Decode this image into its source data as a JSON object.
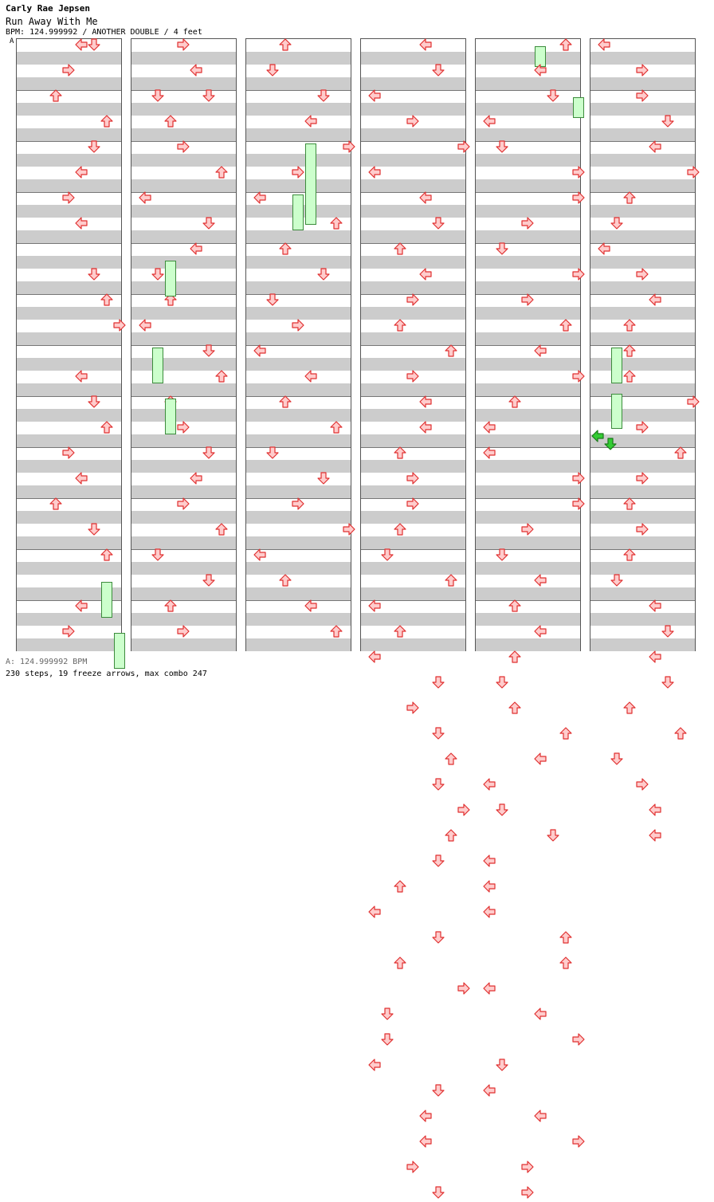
{
  "header": {
    "artist": "Carly Rae Jepsen",
    "title": "Run Away With Me",
    "info": "BPM: 124.999992 / ANOTHER DOUBLE / 4 feet",
    "bpm_marker": "A"
  },
  "footer": {
    "bpm": "A: 124.999992 BPM",
    "stats": "230 steps, 19 freeze arrows, max combo 247"
  },
  "colors": {
    "note_fill": "#ffcccc",
    "note_stroke": "#e03030",
    "freeze_fill": "#ccffcc",
    "freeze_stroke": "#3c8c3c",
    "active_freeze": "#33cc33",
    "stripe": "#cccccc"
  },
  "chart": {
    "columns": 6,
    "measures_per_column": 12,
    "lanes": [
      "left",
      "down",
      "up",
      "right",
      "left",
      "down",
      "up",
      "right"
    ],
    "notes": [
      [
        [
          4,
          0,
          "note"
        ],
        [
          5,
          0,
          "note"
        ],
        [
          3,
          0.5,
          "note"
        ],
        [
          2,
          1,
          "note"
        ],
        [
          6,
          1.5,
          "note"
        ],
        [
          5,
          2,
          "note"
        ],
        [
          4,
          2.5,
          "note"
        ],
        [
          3,
          3,
          "note"
        ],
        [
          4,
          3.5,
          "note"
        ],
        [
          5,
          4.5,
          "note"
        ],
        [
          6,
          5,
          "note"
        ],
        [
          7,
          5.5,
          "note"
        ],
        [
          4,
          6.5,
          "note"
        ],
        [
          5,
          7,
          "note"
        ],
        [
          6,
          7.5,
          "note"
        ],
        [
          3,
          8,
          "note"
        ],
        [
          4,
          8.5,
          "note"
        ],
        [
          2,
          9,
          "note"
        ],
        [
          5,
          9.5,
          "note"
        ],
        [
          6,
          10,
          "note"
        ],
        [
          4,
          11,
          "note"
        ],
        [
          3,
          11.5,
          "note"
        ]
      ],
      [
        [
          3,
          0,
          "note"
        ],
        [
          4,
          0.5,
          "note"
        ],
        [
          1,
          1,
          "note"
        ],
        [
          5,
          1,
          "note"
        ],
        [
          2,
          1.5,
          "note"
        ],
        [
          3,
          2,
          "note"
        ],
        [
          6,
          2.5,
          "note"
        ],
        [
          0,
          3,
          "note"
        ],
        [
          5,
          3.5,
          "note"
        ],
        [
          4,
          4,
          "note"
        ],
        [
          1,
          4.5,
          "note"
        ],
        [
          2,
          5,
          "note"
        ],
        [
          0,
          5.5,
          "note"
        ],
        [
          5,
          6,
          "note"
        ],
        [
          6,
          6.5,
          "note"
        ],
        [
          2,
          7,
          "note"
        ],
        [
          3,
          7.5,
          "note"
        ],
        [
          5,
          8,
          "note"
        ],
        [
          4,
          8.5,
          "note"
        ],
        [
          3,
          9,
          "note"
        ],
        [
          6,
          9.5,
          "note"
        ],
        [
          1,
          10,
          "note"
        ],
        [
          5,
          10.5,
          "note"
        ],
        [
          2,
          11,
          "note"
        ],
        [
          3,
          11.5,
          "note"
        ]
      ],
      [
        [
          2,
          0,
          "note"
        ],
        [
          1,
          0.5,
          "note"
        ],
        [
          5,
          1,
          "note"
        ],
        [
          4,
          1.5,
          "note"
        ],
        [
          7,
          2,
          "note"
        ],
        [
          3,
          2.5,
          "note"
        ],
        [
          0,
          3,
          "note"
        ],
        [
          6,
          3.5,
          "note"
        ],
        [
          2,
          4,
          "note"
        ],
        [
          5,
          4.5,
          "note"
        ],
        [
          1,
          5,
          "note"
        ],
        [
          3,
          5.5,
          "note"
        ],
        [
          0,
          6,
          "note"
        ],
        [
          4,
          6.5,
          "note"
        ],
        [
          2,
          7,
          "note"
        ],
        [
          6,
          7.5,
          "note"
        ],
        [
          1,
          8,
          "note"
        ],
        [
          5,
          8.5,
          "note"
        ],
        [
          3,
          9,
          "note"
        ],
        [
          7,
          9.5,
          "note"
        ],
        [
          0,
          10,
          "note"
        ],
        [
          2,
          10.5,
          "note"
        ],
        [
          4,
          11,
          "note"
        ],
        [
          6,
          11.5,
          "note"
        ]
      ]
    ],
    "freeze_count": 19,
    "step_count": 230
  }
}
